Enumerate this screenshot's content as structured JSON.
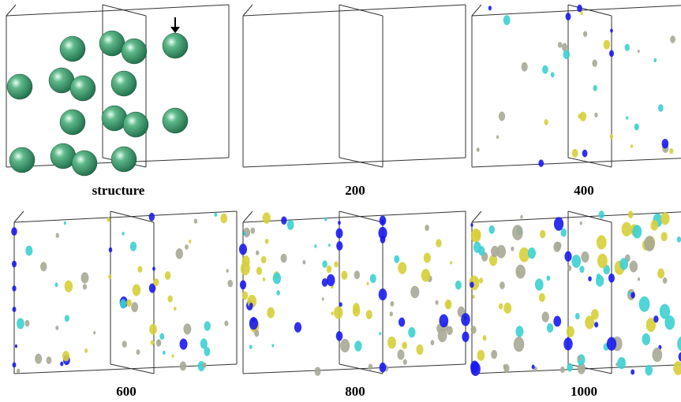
{
  "panels": [
    {
      "label": "structure"
    },
    {
      "label": "200"
    },
    {
      "label": "400"
    },
    {
      "label": "600"
    },
    {
      "label": "800"
    },
    {
      "label": "1000"
    }
  ]
}
